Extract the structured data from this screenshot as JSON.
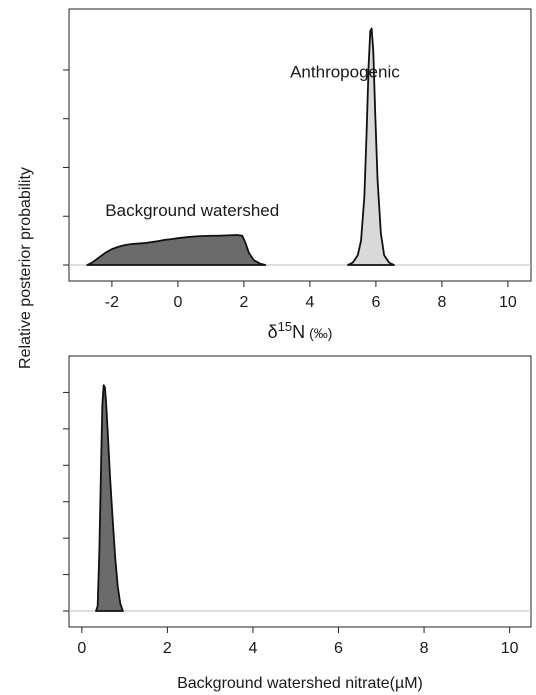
{
  "shared_ylabel": "Relative posterior probability",
  "chart_data": [
    {
      "type": "area",
      "panel": "top",
      "xlabel_main": "δ",
      "xlabel_sup": "15",
      "xlabel_rest": "N",
      "xlabel_unit": "(‰)",
      "xlim": [
        -3.3,
        10.7
      ],
      "xticks": [
        -2,
        0,
        2,
        4,
        6,
        8,
        10
      ],
      "xtick_labels": [
        "-2",
        "0",
        "2",
        "4",
        "6",
        "8",
        "10"
      ],
      "ylim": [
        0,
        1.05
      ],
      "yticks": [
        0,
        0.2,
        0.4,
        0.6,
        0.8
      ],
      "grid": false,
      "series": [
        {
          "name": "Background watershed",
          "color": "#6b6b6b",
          "x": [
            -2.75,
            -2.6,
            -2.4,
            -2.2,
            -2.0,
            -1.8,
            -1.6,
            -1.4,
            -1.2,
            -1.0,
            -0.8,
            -0.6,
            -0.4,
            -0.2,
            0.0,
            0.2,
            0.4,
            0.6,
            0.8,
            1.0,
            1.2,
            1.4,
            1.6,
            1.8,
            1.95,
            2.05,
            2.15,
            2.3,
            2.5,
            2.65
          ],
          "y": [
            0.0,
            0.01,
            0.03,
            0.05,
            0.065,
            0.075,
            0.082,
            0.086,
            0.088,
            0.09,
            0.094,
            0.098,
            0.103,
            0.106,
            0.11,
            0.113,
            0.116,
            0.118,
            0.119,
            0.12,
            0.12,
            0.121,
            0.122,
            0.123,
            0.12,
            0.09,
            0.05,
            0.02,
            0.005,
            0.0
          ]
        },
        {
          "name": "Anthropogenic",
          "color": "#d9d9d9",
          "x": [
            5.15,
            5.3,
            5.45,
            5.55,
            5.65,
            5.72,
            5.78,
            5.83,
            5.87,
            5.92,
            5.98,
            6.05,
            6.15,
            6.25,
            6.4,
            6.55
          ],
          "y": [
            0.0,
            0.01,
            0.04,
            0.1,
            0.28,
            0.55,
            0.82,
            0.96,
            0.97,
            0.88,
            0.62,
            0.35,
            0.13,
            0.04,
            0.01,
            0.0
          ]
        }
      ],
      "annotations": [
        {
          "text": "Anthropogenic",
          "x": 3.4,
          "y": 0.77
        },
        {
          "text": "Background watershed",
          "x": -2.2,
          "y": 0.2
        }
      ]
    },
    {
      "type": "area",
      "panel": "bottom",
      "xlabel": "Background watershed nitrate(µM)",
      "xlim": [
        -0.3,
        10.5
      ],
      "xticks": [
        0,
        2,
        4,
        6,
        8,
        10
      ],
      "xtick_labels": [
        "0",
        "2",
        "4",
        "6",
        "8",
        "10"
      ],
      "ylim": [
        0,
        1.05
      ],
      "yticks": [
        0,
        0.15,
        0.3,
        0.45,
        0.6,
        0.75,
        0.9
      ],
      "grid": false,
      "series": [
        {
          "name": "",
          "color": "#6b6b6b",
          "x": [
            0.33,
            0.37,
            0.41,
            0.45,
            0.48,
            0.51,
            0.54,
            0.57,
            0.61,
            0.66,
            0.72,
            0.78,
            0.84,
            0.9,
            0.96
          ],
          "y": [
            0.0,
            0.02,
            0.25,
            0.6,
            0.85,
            0.93,
            0.92,
            0.85,
            0.72,
            0.55,
            0.38,
            0.22,
            0.1,
            0.03,
            0.0
          ]
        }
      ],
      "annotations": []
    }
  ]
}
